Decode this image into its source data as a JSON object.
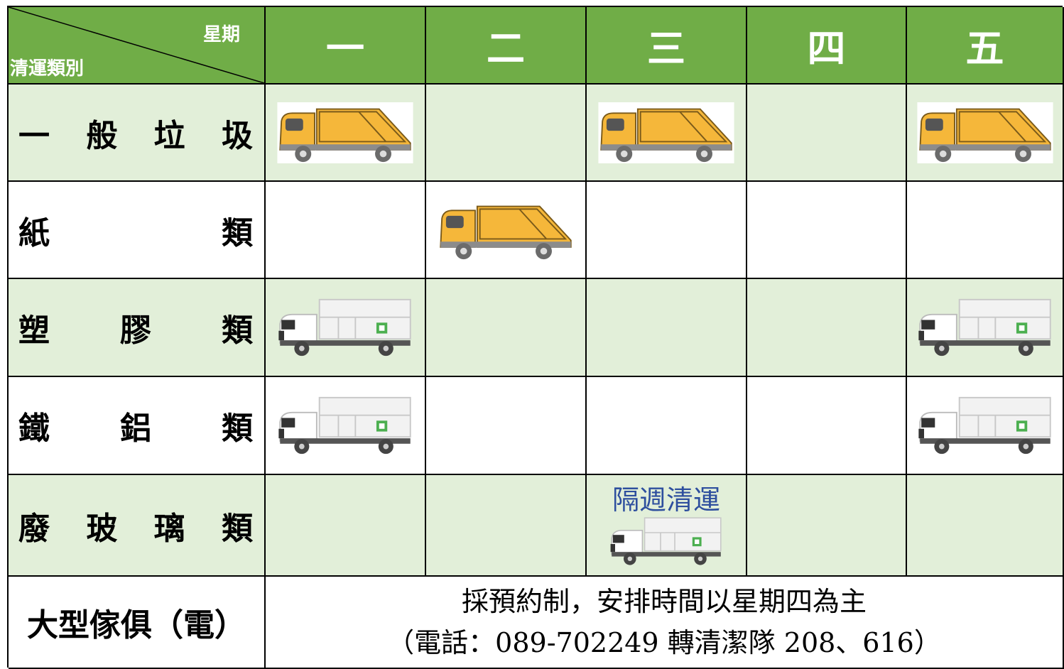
{
  "header": {
    "corner_top": "星期",
    "corner_bottom": "清運類別",
    "days": [
      "一",
      "二",
      "三",
      "四",
      "五"
    ]
  },
  "rows": [
    {
      "label": [
        "一",
        "般",
        "垃",
        "圾"
      ]
    },
    {
      "label": [
        "紙",
        "類"
      ]
    },
    {
      "label": [
        "塑",
        "膠",
        "類"
      ]
    },
    {
      "label": [
        "鐵",
        "鋁",
        "類"
      ]
    },
    {
      "label": [
        "廢",
        "玻",
        "璃",
        "類"
      ],
      "note": "隔週清運"
    }
  ],
  "footer": {
    "label": "大型傢俱（電）",
    "lines": [
      "採預約制，安排時間以星期四為主",
      "（電話：089-702249 轉清潔隊 208、616）"
    ]
  }
}
